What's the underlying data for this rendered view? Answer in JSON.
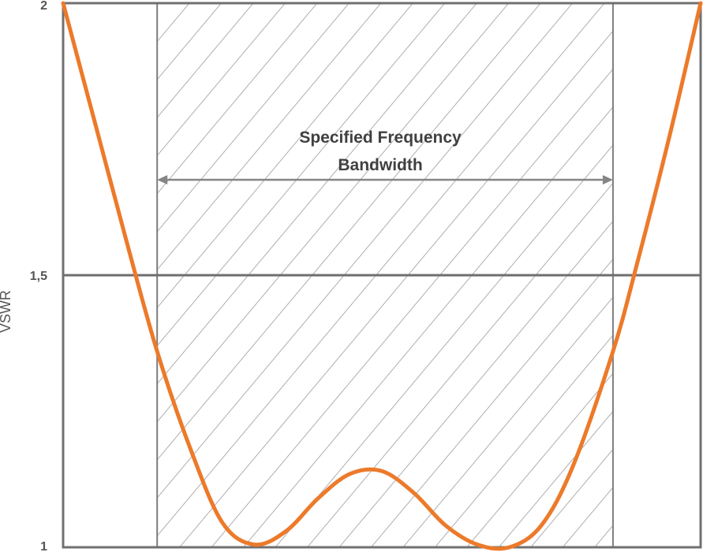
{
  "chart_data": {
    "type": "line",
    "xlabel": "",
    "ylabel": "VSWR",
    "ylim": [
      1,
      2
    ],
    "yticks": [
      {
        "value": 2,
        "label": "2"
      },
      {
        "value": 1.5,
        "label": "1,5"
      },
      {
        "value": 1,
        "label": "1"
      }
    ],
    "grid": false,
    "legend": "none",
    "reference_line": {
      "value": 1.5
    },
    "band": {
      "start": 0.1475,
      "end": 0.8625,
      "hatched": true
    },
    "annotation": {
      "lines": [
        "Specified Frequency",
        "Bandwidth"
      ]
    },
    "series": [
      {
        "x": [
          0.0,
          0.05,
          0.1,
          0.1475,
          0.2,
          0.25,
          0.3,
          0.35,
          0.4,
          0.45,
          0.5,
          0.55,
          0.6,
          0.65,
          0.7,
          0.75,
          0.8,
          0.8625,
          0.9,
          0.95,
          1.0
        ],
        "y": [
          2.0,
          1.78,
          1.56,
          1.36,
          1.18,
          1.045,
          1.005,
          1.03,
          1.09,
          1.135,
          1.14,
          1.1,
          1.04,
          1.005,
          1.0,
          1.04,
          1.15,
          1.36,
          1.52,
          1.75,
          2.0
        ],
        "color": "#ec7a2a"
      }
    ]
  },
  "colors": {
    "curve": "#ec7a2a",
    "frame": "#707070",
    "hatch": "#9a9a9a",
    "arrow": "#858585",
    "text": "#404040"
  }
}
